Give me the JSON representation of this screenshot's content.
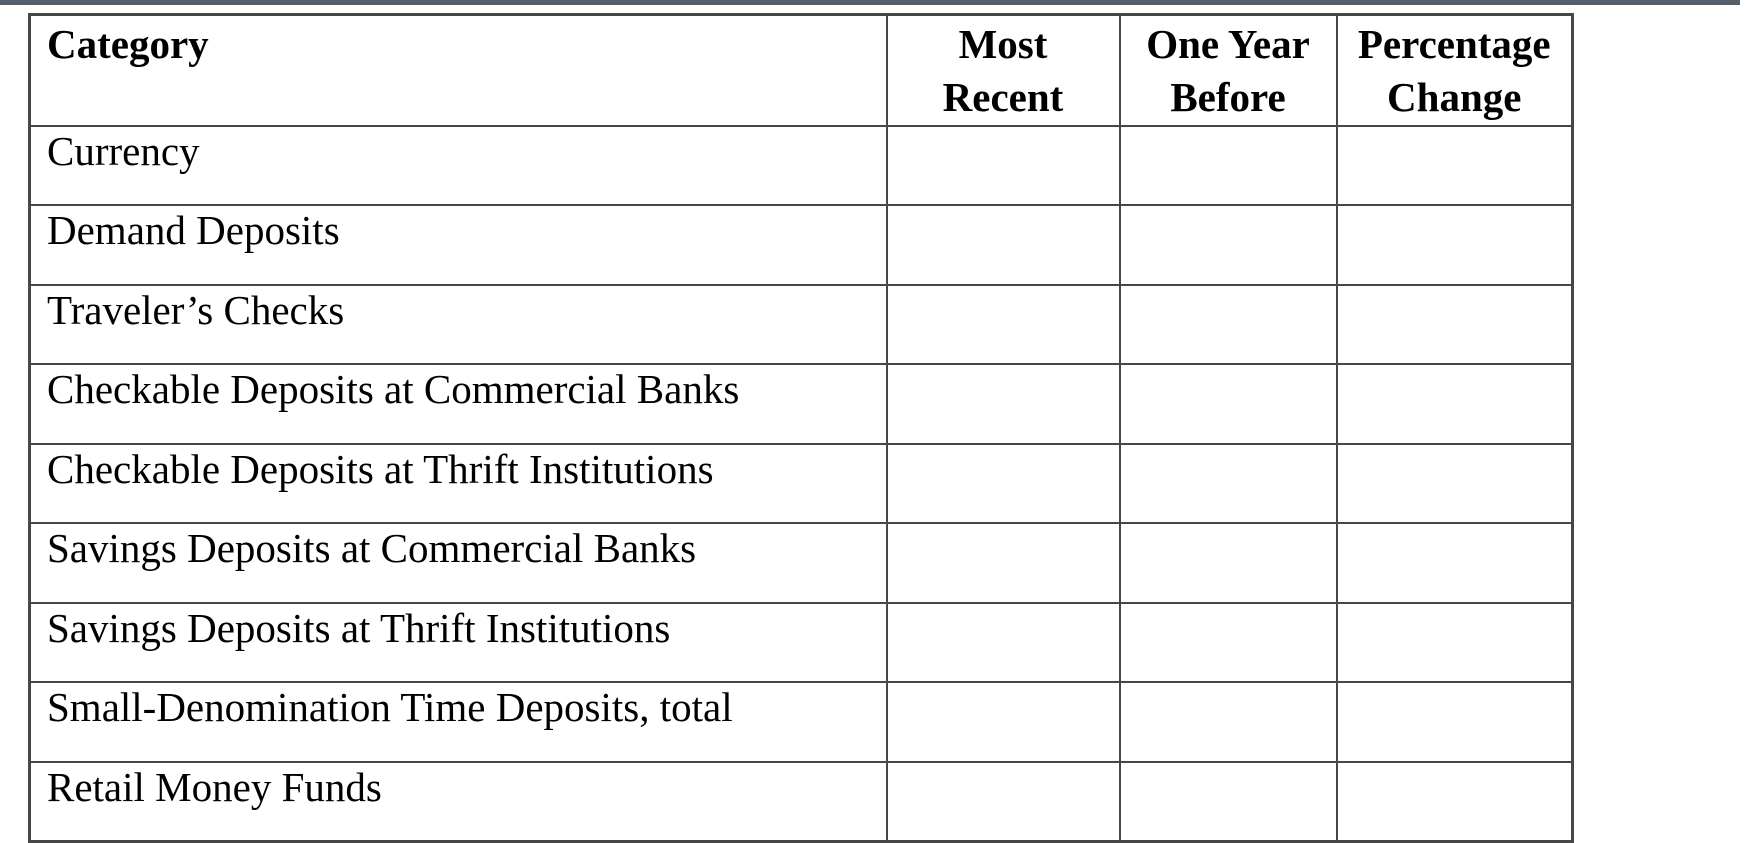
{
  "window": {
    "top_bar_color": "#54606c"
  },
  "colors": {
    "table_border": "#474747",
    "text": "#000000",
    "background": "#ffffff"
  },
  "table": {
    "columns": [
      {
        "label": "Category"
      },
      {
        "label": "Most Recent"
      },
      {
        "label": "One Year Before"
      },
      {
        "label": "Percentage Change"
      }
    ],
    "rows": [
      {
        "category": "Currency",
        "most_recent": "",
        "one_year_before": "",
        "percentage_change": ""
      },
      {
        "category": "Demand Deposits",
        "most_recent": "",
        "one_year_before": "",
        "percentage_change": ""
      },
      {
        "category": "Traveler’s Checks",
        "most_recent": "",
        "one_year_before": "",
        "percentage_change": ""
      },
      {
        "category": "Checkable Deposits at Commercial Banks",
        "most_recent": "",
        "one_year_before": "",
        "percentage_change": ""
      },
      {
        "category": "Checkable Deposits at Thrift Institutions",
        "most_recent": "",
        "one_year_before": "",
        "percentage_change": ""
      },
      {
        "category": "Savings Deposits at Commercial Banks",
        "most_recent": "",
        "one_year_before": "",
        "percentage_change": ""
      },
      {
        "category": "Savings Deposits at Thrift Institutions",
        "most_recent": "",
        "one_year_before": "",
        "percentage_change": ""
      },
      {
        "category": "Small-Denomination Time Deposits, total",
        "most_recent": "",
        "one_year_before": "",
        "percentage_change": ""
      },
      {
        "category": "Retail Money Funds",
        "most_recent": "",
        "one_year_before": "",
        "percentage_change": ""
      }
    ]
  }
}
